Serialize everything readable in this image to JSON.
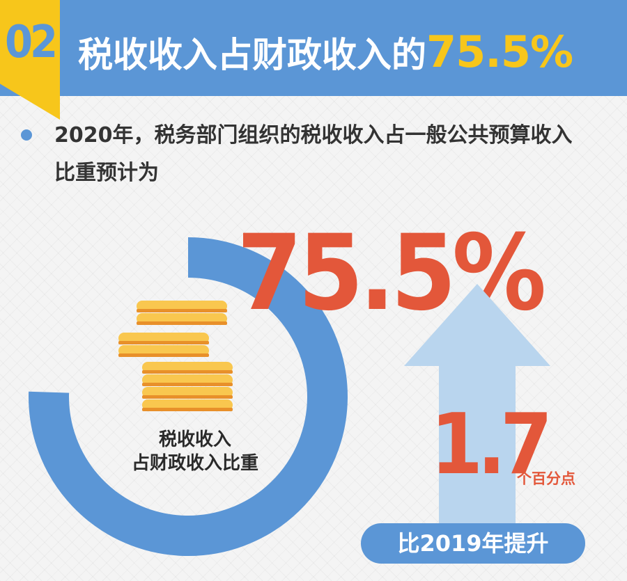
{
  "header": {
    "section_number": "02",
    "title_text": "税收收入占财政收入的",
    "title_highlight": "75.5%"
  },
  "intro": {
    "line1": "2020年，税务部门组织的税收收入占一般公共预算收入",
    "line2": "比重预计为"
  },
  "ring": {
    "label_line1": "税收收入",
    "label_line2": "占财政收入比重",
    "percent_value": 75.5
  },
  "big_value": "75.5%",
  "increase": {
    "number": "1.7",
    "unit": "个百分点",
    "comparison_label": "比2019年提升"
  },
  "icons": [
    "bullet-dot-icon",
    "coin-stack-icon",
    "up-arrow-icon"
  ],
  "colors": {
    "primary_blue": "#5b96d6",
    "accent_yellow": "#f7c61b",
    "accent_red": "#e3573a",
    "arrow_light_blue": "#b9d5ee",
    "text_dark": "#333333"
  }
}
